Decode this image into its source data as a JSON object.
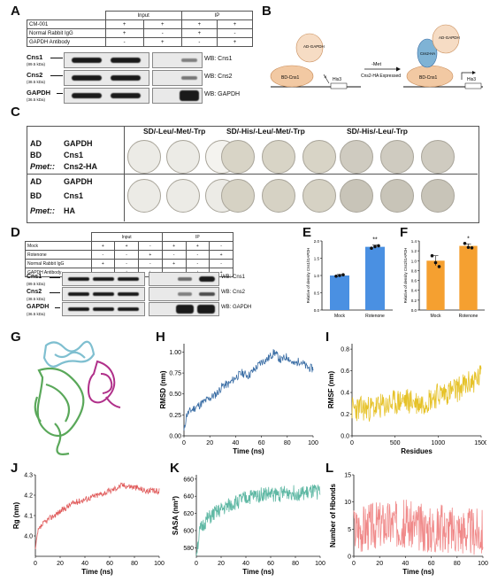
{
  "panels": {
    "A": "A",
    "B": "B",
    "C": "C",
    "D": "D",
    "E": "E",
    "F": "F",
    "G": "G",
    "H": "H",
    "I": "I",
    "J": "J",
    "K": "K",
    "L": "L"
  },
  "panelA": {
    "header_input": "Input",
    "header_ip": "IP",
    "rows": [
      {
        "label": "CM-001",
        "signs": [
          "+",
          "+",
          "+",
          "+"
        ]
      },
      {
        "label": "Normal Rabbit IgG",
        "signs": [
          "+",
          "-",
          "+",
          "-"
        ]
      },
      {
        "label": "GAPDH Antibody",
        "signs": [
          "-",
          "+",
          "-",
          "+"
        ]
      }
    ],
    "proteins": [
      {
        "name": "Cns1",
        "kda": "(89.5 kDa)",
        "wb": "WB: Cns1"
      },
      {
        "name": "Cns2",
        "kda": "(38.5 kDa)",
        "wb": "WB: Cns2"
      },
      {
        "name": "GAPDH",
        "kda": "(36.5 kDa)",
        "wb": "WB: GAPDH"
      }
    ]
  },
  "panelB": {
    "left_ad": "AD-GAPDH",
    "left_bd": "BD-Cns1",
    "left_his": "His3",
    "condition_top": "-Met",
    "condition_bottom": "Cns2-HA Expressed",
    "right_ad": "AD-GAPDH",
    "right_mid": "Cns2-HA",
    "right_bd": "BD-Cns1",
    "right_his": "His3"
  },
  "panelC": {
    "media": [
      "SD/-Leu/-Met/-Trp",
      "SD/-His/-Leu/-Met/-Trp",
      "SD/-His/-Leu/-Trp"
    ],
    "rows": [
      {
        "k": "AD",
        "v": "GAPDH"
      },
      {
        "k": "BD",
        "v": "Cns1"
      },
      {
        "k": "Pmet::",
        "v": "Cns2-HA"
      },
      {
        "k": "AD",
        "v": "GAPDH"
      },
      {
        "k": "BD",
        "v": "Cns1"
      },
      {
        "k": "Pmet::",
        "v": "HA"
      }
    ]
  },
  "panelD": {
    "header_input": "Input",
    "header_ip": "IP",
    "rows": [
      {
        "label": "Mock",
        "signs": [
          "+",
          "+",
          "-",
          "+",
          "+",
          "-"
        ]
      },
      {
        "label": "Rotenone",
        "signs": [
          "-",
          "-",
          "+",
          "-",
          "-",
          "+"
        ]
      },
      {
        "label": "Normal Rabbit IgG",
        "signs": [
          "+",
          "-",
          "-",
          "+",
          "-",
          "-"
        ]
      },
      {
        "label": "GAPDH Antibody",
        "signs": [
          "-",
          "+",
          "+",
          "-",
          "+",
          "+"
        ]
      }
    ],
    "proteins": [
      {
        "name": "Cns1",
        "kda": "(89.5 kDa)",
        "wb": "WB: Cns1"
      },
      {
        "name": "Cns2",
        "kda": "(38.5 kDa)",
        "wb": "WB: Cns2"
      },
      {
        "name": "GAPDH",
        "kda": "(36.5 kDa)",
        "wb": "WB: GAPDH"
      }
    ]
  },
  "chart_data": [
    {
      "panel": "E",
      "type": "bar",
      "categories": [
        "Mock",
        "Rotenone"
      ],
      "values": [
        1.0,
        1.83
      ],
      "errors": [
        0.03,
        0.05
      ],
      "points": [
        [
          0.98,
          1.0,
          1.02
        ],
        [
          1.79,
          1.84,
          1.86
        ]
      ],
      "colors": [
        "#4a90e2",
        "#4a90e2"
      ],
      "significance": "**",
      "ylabel": "Relative of density Cns1/GAPDH",
      "ylim": [
        0,
        2.0
      ],
      "yticks": [
        "0.0",
        "0.5",
        "1.0",
        "1.5",
        "2.0"
      ]
    },
    {
      "panel": "F",
      "type": "bar",
      "categories": [
        "Mock",
        "Rotenone"
      ],
      "values": [
        1.0,
        1.3
      ],
      "errors": [
        0.1,
        0.04
      ],
      "points": [
        [
          1.1,
          0.96,
          0.88
        ],
        [
          1.35,
          1.27,
          1.26
        ]
      ],
      "colors": [
        "#f5a030",
        "#f5a030"
      ],
      "significance": "*",
      "ylabel": "Relative of density Cns2/GAPDH",
      "ylim": [
        0,
        1.4
      ],
      "yticks": [
        "0.0",
        "0.2",
        "0.4",
        "0.6",
        "0.8",
        "1.0",
        "1.2",
        "1.4"
      ]
    },
    {
      "panel": "H",
      "type": "line",
      "color": "#3b6ea5",
      "xlabel": "Time (ns)",
      "ylabel": "RMSD (nm)",
      "xlim": [
        0,
        100
      ],
      "ylim": [
        0,
        1.1
      ],
      "xticks": [
        "0",
        "20",
        "40",
        "60",
        "80",
        "100"
      ],
      "yticks": [
        "0.00",
        "0.25",
        "0.50",
        "0.75",
        "1.00"
      ],
      "trend": [
        [
          0,
          0.05
        ],
        [
          2,
          0.25
        ],
        [
          5,
          0.3
        ],
        [
          10,
          0.35
        ],
        [
          15,
          0.4
        ],
        [
          20,
          0.45
        ],
        [
          25,
          0.5
        ],
        [
          30,
          0.6
        ],
        [
          35,
          0.62
        ],
        [
          40,
          0.7
        ],
        [
          45,
          0.75
        ],
        [
          50,
          0.72
        ],
        [
          55,
          0.8
        ],
        [
          60,
          0.88
        ],
        [
          65,
          0.92
        ],
        [
          70,
          1.0
        ],
        [
          75,
          0.9
        ],
        [
          80,
          0.95
        ],
        [
          85,
          0.85
        ],
        [
          90,
          0.9
        ],
        [
          95,
          0.82
        ],
        [
          100,
          0.8
        ]
      ]
    },
    {
      "panel": "I",
      "type": "line",
      "color": "#e6c229",
      "xlabel": "Residues",
      "ylabel": "RMSF (nm)",
      "xlim": [
        0,
        1500
      ],
      "ylim": [
        0,
        0.85
      ],
      "xticks": [
        "0",
        "500",
        "1000",
        "1500"
      ],
      "yticks": [
        "0.0",
        "0.2",
        "0.4",
        "0.6",
        "0.8"
      ],
      "trend": [
        [
          0,
          0.25
        ],
        [
          200,
          0.25
        ],
        [
          400,
          0.28
        ],
        [
          600,
          0.33
        ],
        [
          800,
          0.3
        ],
        [
          1000,
          0.38
        ],
        [
          1200,
          0.42
        ],
        [
          1400,
          0.5
        ],
        [
          1500,
          0.55
        ]
      ]
    },
    {
      "panel": "J",
      "type": "line",
      "color": "#e05a5a",
      "xlabel": "Time (ns)",
      "ylabel": "Rg (nm)",
      "xlim": [
        0,
        100
      ],
      "ylim": [
        3.9,
        4.3
      ],
      "xticks": [
        "0",
        "20",
        "40",
        "60",
        "80",
        "100"
      ],
      "yticks": [
        "4.0",
        "4.1",
        "4.2",
        "4.3"
      ],
      "trend": [
        [
          0,
          3.93
        ],
        [
          2,
          4.02
        ],
        [
          5,
          4.05
        ],
        [
          10,
          4.08
        ],
        [
          20,
          4.12
        ],
        [
          30,
          4.16
        ],
        [
          40,
          4.18
        ],
        [
          50,
          4.2
        ],
        [
          60,
          4.22
        ],
        [
          70,
          4.25
        ],
        [
          80,
          4.24
        ],
        [
          90,
          4.22
        ],
        [
          100,
          4.22
        ]
      ]
    },
    {
      "panel": "K",
      "type": "line",
      "color": "#5fb8a4",
      "xlabel": "Time (ns)",
      "ylabel": "SASA (nm²)",
      "xlim": [
        0,
        100
      ],
      "ylim": [
        570,
        665
      ],
      "xticks": [
        "0",
        "20",
        "40",
        "60",
        "80",
        "100"
      ],
      "yticks": [
        "580",
        "600",
        "620",
        "640",
        "660"
      ],
      "trend": [
        [
          0,
          575
        ],
        [
          3,
          600
        ],
        [
          8,
          612
        ],
        [
          15,
          620
        ],
        [
          25,
          628
        ],
        [
          35,
          635
        ],
        [
          45,
          640
        ],
        [
          55,
          643
        ],
        [
          65,
          642
        ],
        [
          75,
          645
        ],
        [
          85,
          643
        ],
        [
          95,
          645
        ],
        [
          100,
          645
        ]
      ]
    },
    {
      "panel": "L",
      "type": "line",
      "color": "#f08a8a",
      "xlabel": "Time (ns)",
      "ylabel": "Number of Hbonds",
      "xlim": [
        0,
        100
      ],
      "ylim": [
        0,
        15
      ],
      "xticks": [
        "0",
        "20",
        "40",
        "60",
        "80",
        "100"
      ],
      "yticks": [
        "0",
        "5",
        "10",
        "15"
      ],
      "trend": [
        [
          0,
          5
        ],
        [
          20,
          6
        ],
        [
          40,
          6
        ],
        [
          60,
          5
        ],
        [
          80,
          5
        ],
        [
          100,
          4.5
        ]
      ]
    }
  ]
}
